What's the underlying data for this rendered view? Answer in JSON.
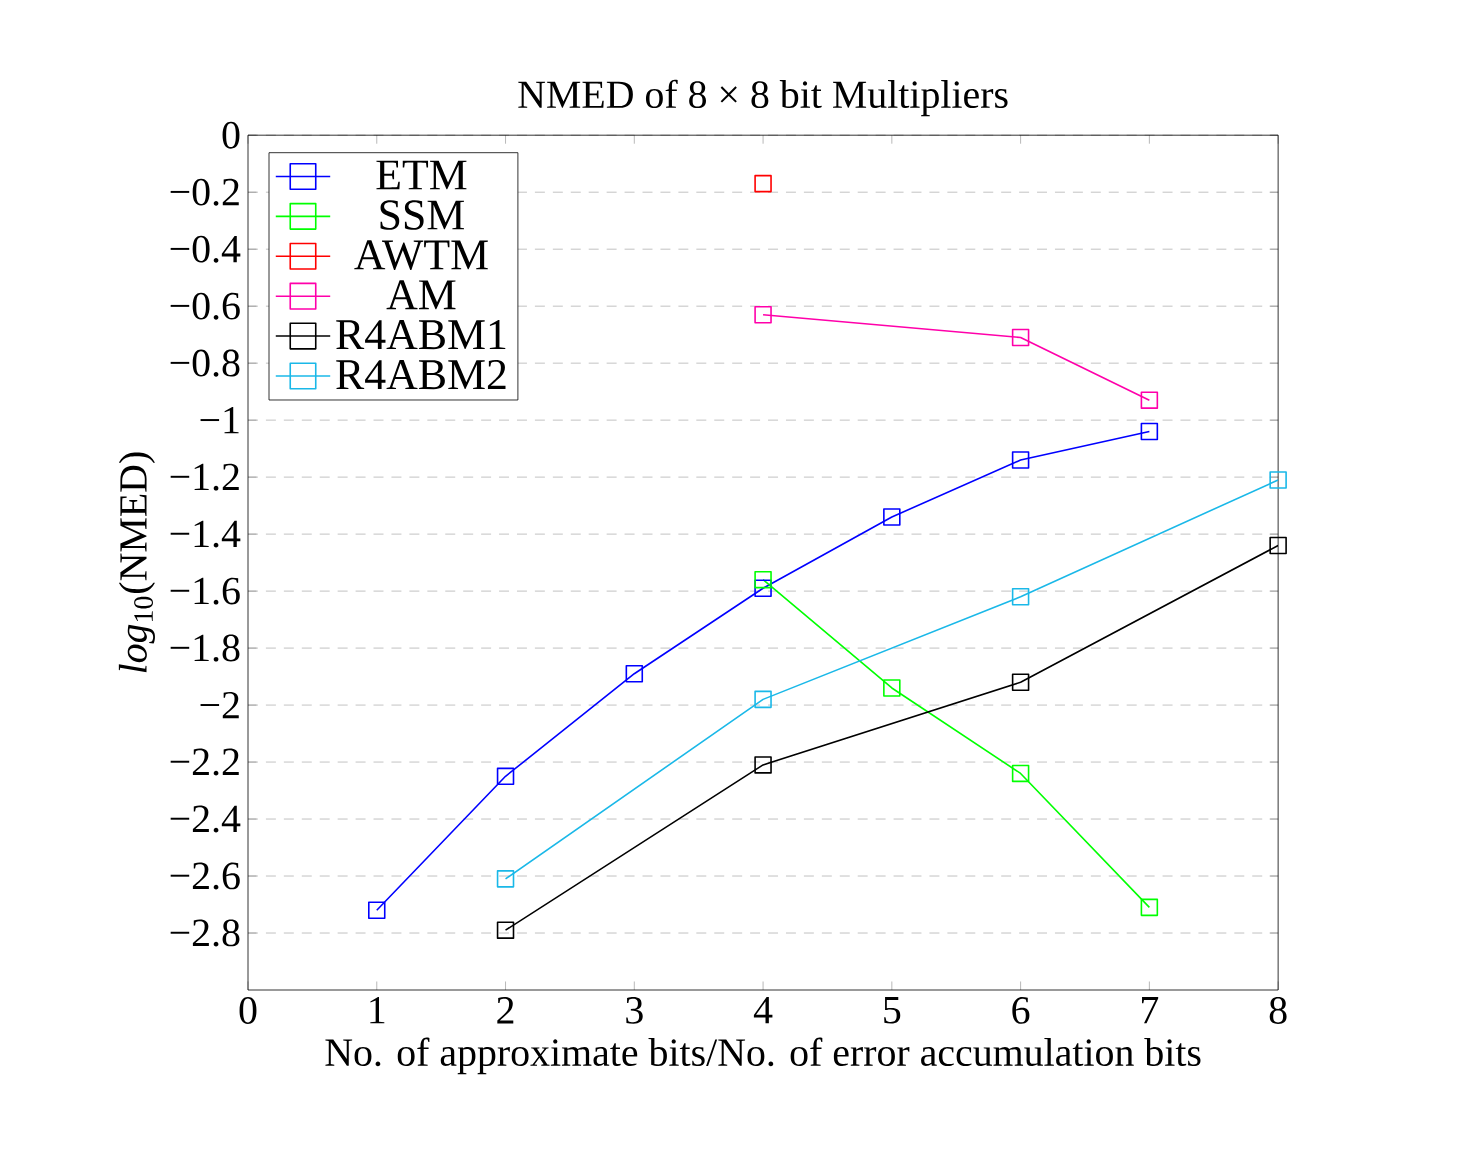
{
  "chart_data": {
    "type": "line",
    "title": "NMED of 8 × 8 bit Multipliers",
    "xlabel": "No. of approximate bits/No. of error accumulation bits",
    "ylabel": "*log*$_{10}$(NMED)",
    "xlim": [
      0,
      8
    ],
    "xticks": [
      0,
      1,
      2,
      3,
      4,
      5,
      6,
      7,
      8
    ],
    "ylim": [
      -3,
      0
    ],
    "yticks": [
      0,
      {
        "value": -0.2,
        "label": "−0.2"
      },
      {
        "value": -0.4,
        "label": "−0.4"
      },
      {
        "value": -0.6,
        "label": "−0.6"
      },
      {
        "value": -0.8,
        "label": "−0.8"
      },
      {
        "value": -1,
        "label": "−1"
      },
      {
        "value": -1.2,
        "label": "−1.2"
      },
      {
        "value": -1.4,
        "label": "−1.4"
      },
      {
        "value": -1.6,
        "label": "−1.6"
      },
      {
        "value": -1.8,
        "label": "−1.8"
      },
      {
        "value": -2,
        "label": "−2"
      },
      {
        "value": -2.2,
        "label": "−2.2"
      },
      {
        "value": -2.4,
        "label": "−2.4"
      },
      {
        "value": -2.6,
        "label": "−2.6"
      },
      {
        "value": -2.8,
        "label": "−2.8"
      }
    ],
    "grid": "y",
    "legend": "top left",
    "marker": "square",
    "line_style": "solid",
    "series": [
      {
        "name": "ETM",
        "color": "#0000ff",
        "x": [
          1,
          2,
          3,
          4,
          5,
          6,
          7
        ],
        "values": [
          -2.72,
          -2.25,
          -1.89,
          -1.59,
          -1.34,
          -1.14,
          -1.04
        ]
      },
      {
        "name": "SSM",
        "color": "#00ff00",
        "x": [
          4,
          5,
          6,
          7
        ],
        "values": [
          -1.56,
          -1.94,
          -2.24,
          -2.71
        ]
      },
      {
        "name": "AWTM",
        "color": "#ff0000",
        "x": [
          4
        ],
        "values": [
          -0.17
        ]
      },
      {
        "name": "AM",
        "color": "#ff00aa",
        "x": [
          4,
          6,
          7
        ],
        "values": [
          -0.63,
          -0.71,
          -0.93
        ]
      },
      {
        "name": "R4ABM1",
        "color": "#000000",
        "x": [
          2,
          4,
          6,
          8
        ],
        "values": [
          -2.79,
          -2.21,
          -1.92,
          -1.44
        ]
      },
      {
        "name": "R4ABM2",
        "color": "#1ab8e8",
        "x": [
          2,
          4,
          6,
          8
        ],
        "values": [
          -2.61,
          -1.98,
          -1.62,
          -1.21
        ]
      }
    ]
  }
}
